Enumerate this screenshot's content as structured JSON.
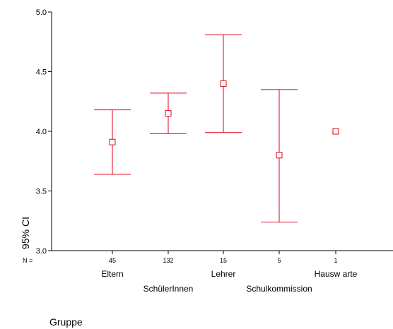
{
  "chart_data": {
    "type": "errorbar",
    "xlabel": "Gruppe",
    "ylabel": "95% CI",
    "ylim": [
      3.0,
      5.0
    ],
    "yticks": [
      "3.0",
      "3.5",
      "4.0",
      "4.5",
      "5.0"
    ],
    "n_label": "N =",
    "color": "#e3001b",
    "categories": [
      "Eltern",
      "SchülerInnen",
      "Lehrer",
      "Schulkommission",
      "Hausw arte"
    ],
    "n": [
      "45",
      "132",
      "15",
      "5",
      "1"
    ],
    "mean": [
      3.91,
      4.15,
      4.4,
      3.8,
      4.0
    ],
    "lower": [
      3.64,
      3.98,
      3.99,
      3.24,
      null
    ],
    "upper": [
      4.18,
      4.32,
      4.81,
      4.35,
      null
    ]
  }
}
